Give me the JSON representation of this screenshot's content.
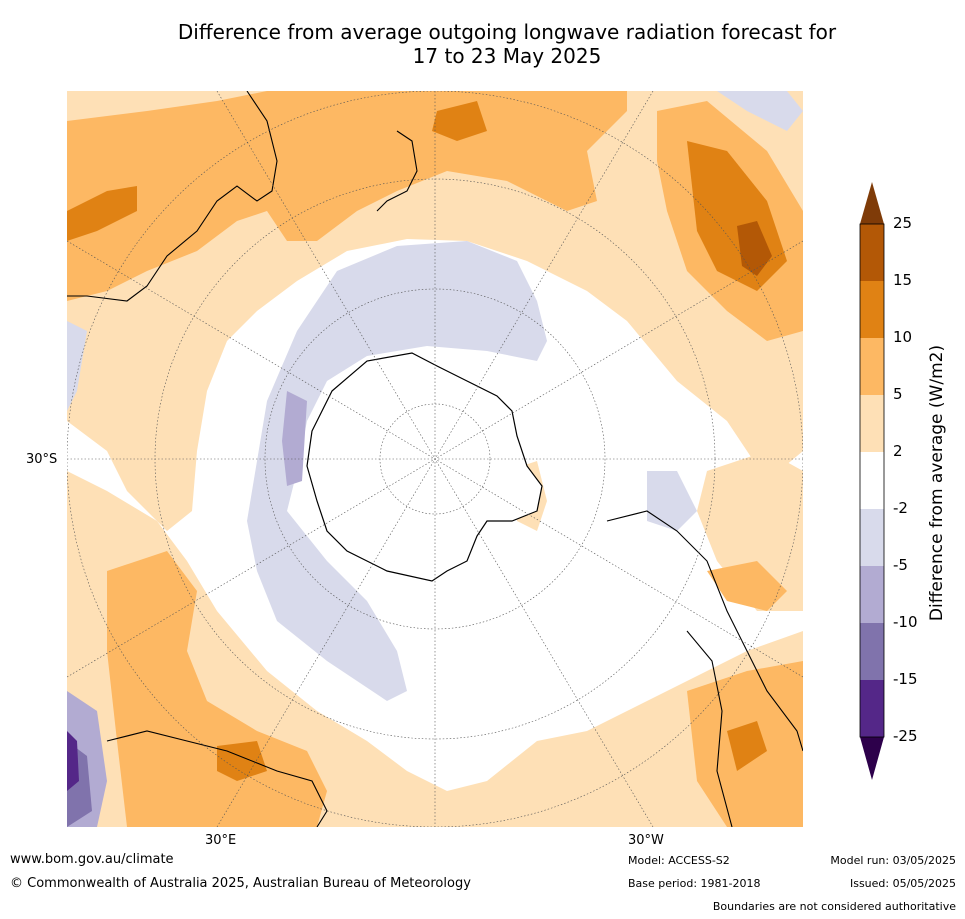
{
  "title": {
    "line1": "Difference from average outgoing longwave radiation forecast for",
    "line2": "17 to 23 May 2025"
  },
  "map": {
    "projection": "south-polar-stereographic",
    "labels": {
      "lat_30s": "30°S",
      "lon_30e": "30°E",
      "lon_30w": "30°W"
    }
  },
  "colorbar": {
    "title": "Difference from average (W/m2)",
    "ticks": [
      "25",
      "15",
      "10",
      "5",
      "2",
      "-2",
      "-5",
      "-10",
      "-15",
      "-25"
    ],
    "colors": {
      "over": "#7f3b08",
      "15_25": "#b35806",
      "10_15": "#e08214",
      "5_10": "#fdb863",
      "2_5": "#fee0b6",
      "m2_2": "#ffffff",
      "m5_m2": "#d8daeb",
      "m10_m5": "#b2abd2",
      "m15_m10": "#8073ac",
      "m25_m15": "#542788",
      "under": "#2d004b"
    }
  },
  "footer": {
    "website": "www.bom.gov.au/climate",
    "copyright": "© Commonwealth of Australia 2025, Australian Bureau of Meteorology",
    "model": "Model: ACCESS-S2",
    "base_period": "Base period: 1981-2018",
    "model_run": "Model run: 03/05/2025",
    "issued": "Issued: 05/05/2025",
    "disclaimer": "Boundaries are not considered authoritative"
  }
}
